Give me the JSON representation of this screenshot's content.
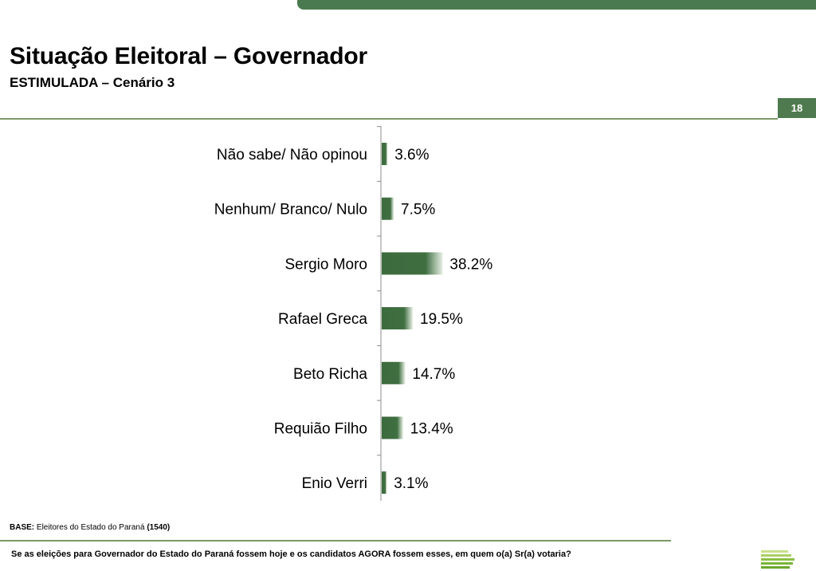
{
  "header": {
    "title": "Situação Eleitoral – Governador",
    "subtitle": "ESTIMULADA – Cenário 3",
    "page_number": "18"
  },
  "footer": {
    "base_label": "BASE:",
    "base_text": "Eleitores do Estado do Paraná",
    "base_count": "(1540)",
    "question": "Se as eleições para Governador do Estado do Paraná fossem hoje e os candidatos AGORA fossem esses, em quem o(a) Sr(a) votaria?"
  },
  "colors": {
    "accent": "#4a7a4f",
    "bar_dark": "#3c6b3e",
    "bar_light": "#e8f0e4"
  },
  "chart_data": {
    "type": "bar",
    "orientation": "horizontal",
    "categories": [
      "Não sabe/ Não opinou",
      "Nenhum/ Branco/ Nulo",
      "Sergio Moro",
      "Rafael Greca",
      "Beto Richa",
      "Requião Filho",
      "Enio Verri"
    ],
    "values": [
      3.6,
      7.5,
      38.2,
      19.5,
      14.7,
      13.4,
      3.1
    ],
    "value_labels": [
      "3.6%",
      "7.5%",
      "38.2%",
      "19.5%",
      "14.7%",
      "13.4%",
      "3.1%"
    ],
    "title": "",
    "xlabel": "",
    "ylabel": "",
    "grid": false
  }
}
